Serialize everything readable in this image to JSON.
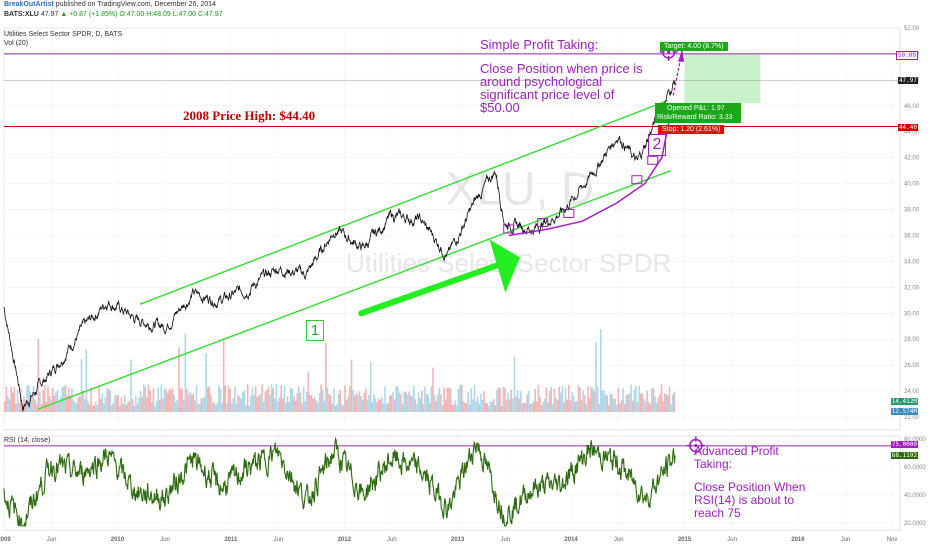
{
  "header": {
    "publisher": "BreakOutArtist",
    "publisher_suffix": " published on TradingView.com, December 26, 2014",
    "symbol": "BATS:XLU",
    "last": "47.97",
    "change": "▲ +0.87 (+1.85%)",
    "ohlc": "O:47.00 H:48.09 L:47.00 C:47.97",
    "chart_title": "Utilities Select Sector SPDR, D, BATS",
    "volume_label": "Vol (20)",
    "rsi_label": "RSI (14, close)"
  },
  "watermark": {
    "ticker": "XLU, D",
    "name": "Utilities Select Sector SPDR"
  },
  "annotations": {
    "high_2008": "2008 Price High: $44.40",
    "simple_title": "Simple Profit Taking:",
    "simple_body": "Close Position when price is around psychological significant price level of $50.00",
    "advanced_title": "Advanced Profit Taking:",
    "advanced_body": "Close Position When RSI(14) is about to reach 75",
    "label_1": "1",
    "label_2": "2",
    "target": "Target: 4.00 (8.7%)",
    "opened_pl": "Opened P&L: 1.97",
    "risk_reward": "Risk/Reward Ratio: 3.33",
    "stop": "Stop: 1.20 (2.61%)"
  },
  "price_tags": {
    "level_50": "50.00",
    "last": "47.97",
    "level_4440": "44.40",
    "vol_a": "14.412M",
    "vol_b": "12.574M",
    "rsi_75": "75.0000",
    "rsi_val": "68.1192"
  },
  "colors": {
    "price_line": "#111111",
    "channel": "#33dd33",
    "arrow": "#22ee22",
    "accent": "#a020c0",
    "high_line": "#cc0000",
    "target_zone": "#b8eeb8",
    "volume_up": "#9fd0e8",
    "volume_down": "#f0a8a8",
    "rsi_line": "#2e6b10"
  },
  "chart_data": [
    {
      "type": "line",
      "title": "Utilities Select Sector SPDR, D, BATS",
      "series": [
        {
          "name": "",
          "x": [
            "2009-01",
            "2009-03",
            "2009-06",
            "2009-09",
            "2009-12",
            "2010-03",
            "2010-06",
            "2010-09",
            "2010-12",
            "2011-03",
            "2011-06",
            "2011-09",
            "2011-12",
            "2012-03",
            "2012-06",
            "2012-09",
            "2012-12",
            "2013-03",
            "2013-05",
            "2013-06",
            "2013-09",
            "2013-12",
            "2014-03",
            "2014-06",
            "2014-08",
            "2014-10",
            "2014-11",
            "2014-12"
          ],
          "y": [
            30.5,
            22.8,
            25.5,
            28.5,
            31.0,
            29.5,
            29.0,
            31.5,
            31.0,
            32.0,
            33.5,
            33.0,
            36.5,
            35.0,
            37.5,
            37.2,
            34.5,
            38.8,
            41.0,
            37.0,
            36.5,
            37.8,
            40.5,
            43.8,
            41.5,
            45.0,
            46.5,
            47.97
          ]
        }
      ],
      "xticks": [
        "2009",
        "Jun",
        "2010",
        "Jun",
        "2011",
        "Jun",
        "2012",
        "Jun",
        "2013",
        "Jun",
        "2014",
        "Jun",
        "2015",
        "Jun",
        "2016",
        "Jun",
        "Nov"
      ],
      "yticks": [
        "52.00",
        "50.00",
        "48.00",
        "46.00",
        "44.00",
        "42.00",
        "40.00",
        "38.00",
        "36.00",
        "34.00",
        "32.00",
        "30.00",
        "28.00",
        "26.00",
        "24.00",
        "22.00"
      ],
      "ylim": [
        21,
        52
      ],
      "horizontal_lines": [
        50.0,
        44.4
      ],
      "grid": true
    },
    {
      "type": "line",
      "title": "RSI (14, close)",
      "series": [
        {
          "name": "",
          "x": [
            "2009-01",
            "2009-03",
            "2009-06",
            "2009-09",
            "2009-12",
            "2010-03",
            "2010-06",
            "2010-09",
            "2010-12",
            "2011-03",
            "2011-06",
            "2011-09",
            "2011-12",
            "2012-03",
            "2012-06",
            "2012-09",
            "2012-12",
            "2013-03",
            "2013-06",
            "2013-09",
            "2013-12",
            "2014-03",
            "2014-06",
            "2014-09",
            "2014-12"
          ],
          "y": [
            40,
            20,
            62,
            55,
            68,
            42,
            38,
            65,
            45,
            60,
            70,
            35,
            72,
            40,
            66,
            58,
            30,
            78,
            25,
            45,
            48,
            72,
            62,
            38,
            68.1192
          ]
        }
      ],
      "yticks": [
        "80.0000",
        "60.0000",
        "40.0000",
        "20.0000"
      ],
      "ylim": [
        15,
        82
      ],
      "horizontal_lines": [
        75
      ],
      "grid": true
    }
  ]
}
